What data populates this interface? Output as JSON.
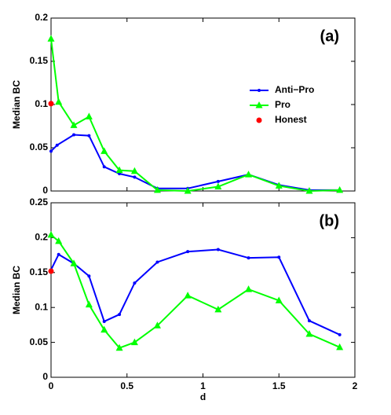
{
  "chart_data": [
    {
      "type": "line",
      "annotation": "(a)",
      "ylabel": "Median BC",
      "legend": true,
      "legend_corner": "upper right",
      "xlim": [
        0,
        2
      ],
      "ylim": [
        0,
        0.2
      ],
      "yticks": [
        0,
        0.05,
        0.1,
        0.15,
        0.2
      ],
      "series": [
        {
          "name": "Anti−Pro",
          "color": "#0000ff",
          "marker": "dot",
          "line": true,
          "x": [
            0,
            0.04,
            0.15,
            0.25,
            0.35,
            0.45,
            0.55,
            0.7,
            0.9,
            1.1,
            1.3,
            1.5,
            1.7,
            1.9
          ],
          "values": [
            0.046,
            0.053,
            0.065,
            0.064,
            0.028,
            0.02,
            0.016,
            0.003,
            0.003,
            0.011,
            0.019,
            0.007,
            0.001,
            0.001
          ]
        },
        {
          "name": "Pro",
          "color": "#00ff00",
          "marker": "triangle",
          "line": true,
          "x": [
            0,
            0.05,
            0.15,
            0.25,
            0.35,
            0.45,
            0.55,
            0.7,
            0.9,
            1.1,
            1.3,
            1.5,
            1.7,
            1.9
          ],
          "values": [
            0.176,
            0.103,
            0.076,
            0.086,
            0.046,
            0.024,
            0.023,
            0.001,
            0.0,
            0.005,
            0.019,
            0.006,
            0.0,
            0.001
          ]
        },
        {
          "name": "Honest",
          "color": "#ff0000",
          "marker": "circle",
          "line": false,
          "x": [
            0
          ],
          "values": [
            0.101
          ]
        }
      ]
    },
    {
      "type": "line",
      "annotation": "(b)",
      "ylabel": "Median BC",
      "xlabel": "d",
      "legend": false,
      "xlim": [
        0,
        2
      ],
      "xticks": [
        0,
        0.5,
        1,
        1.5,
        2
      ],
      "ylim": [
        0,
        0.25
      ],
      "yticks": [
        0,
        0.05,
        0.1,
        0.15,
        0.2,
        0.25
      ],
      "series": [
        {
          "color": "#0000ff",
          "marker": "dot",
          "line": true,
          "x": [
            0,
            0.05,
            0.15,
            0.25,
            0.35,
            0.45,
            0.55,
            0.7,
            0.9,
            1.1,
            1.3,
            1.5,
            1.7,
            1.9
          ],
          "values": [
            0.154,
            0.176,
            0.163,
            0.145,
            0.08,
            0.09,
            0.135,
            0.165,
            0.18,
            0.183,
            0.171,
            0.172,
            0.081,
            0.061
          ]
        },
        {
          "color": "#00ff00",
          "marker": "triangle",
          "line": true,
          "x": [
            0,
            0.05,
            0.15,
            0.25,
            0.35,
            0.45,
            0.55,
            0.7,
            0.9,
            1.1,
            1.3,
            1.5,
            1.7,
            1.9
          ],
          "values": [
            0.204,
            0.195,
            0.163,
            0.104,
            0.068,
            0.042,
            0.05,
            0.074,
            0.117,
            0.097,
            0.126,
            0.11,
            0.062,
            0.043
          ]
        },
        {
          "color": "#ff0000",
          "marker": "circle",
          "line": false,
          "x": [
            0
          ],
          "values": [
            0.152
          ]
        }
      ]
    }
  ]
}
